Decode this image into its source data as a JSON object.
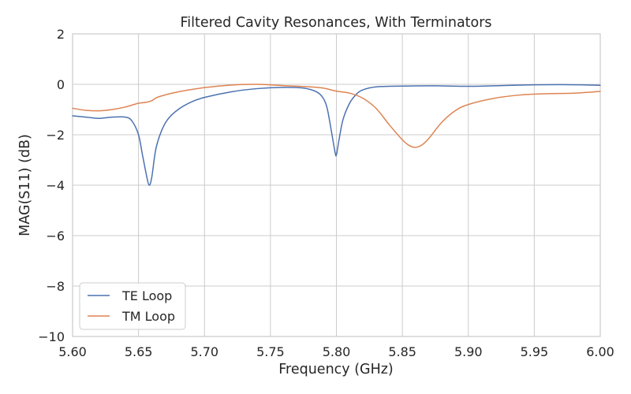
{
  "chart_data": {
    "type": "line",
    "title": "Filtered Cavity Resonances, With Terminators",
    "xlabel": "Frequency (GHz)",
    "ylabel": "MAG(S11) (dB)",
    "xlim": [
      5.6,
      6.0
    ],
    "ylim": [
      -10,
      2
    ],
    "xticks": [
      5.6,
      5.65,
      5.7,
      5.75,
      5.8,
      5.85,
      5.9,
      5.95,
      6.0
    ],
    "xtick_labels": [
      "5.60",
      "5.65",
      "5.70",
      "5.75",
      "5.80",
      "5.85",
      "5.90",
      "5.95",
      "6.00"
    ],
    "yticks": [
      2,
      0,
      -2,
      -4,
      -6,
      -8,
      -10
    ],
    "ytick_labels": [
      "2",
      "0",
      "−2",
      "−4",
      "−6",
      "−8",
      "−10"
    ],
    "grid": true,
    "legend_position": "lower-left",
    "series": [
      {
        "name": "TE Loop",
        "color": "#4c72b0",
        "x": [
          5.6,
          5.61,
          5.62,
          5.63,
          5.64,
          5.645,
          5.65,
          5.653,
          5.656,
          5.658,
          5.66,
          5.663,
          5.667,
          5.672,
          5.68,
          5.69,
          5.7,
          5.72,
          5.74,
          5.76,
          5.775,
          5.785,
          5.79,
          5.793,
          5.796,
          5.799,
          5.8,
          5.802,
          5.805,
          5.81,
          5.815,
          5.82,
          5.83,
          5.85,
          5.875,
          5.9,
          5.925,
          5.95,
          5.97,
          5.985,
          6.0
        ],
        "y": [
          -1.25,
          -1.3,
          -1.35,
          -1.3,
          -1.3,
          -1.45,
          -2.0,
          -2.8,
          -3.6,
          -4.0,
          -3.7,
          -2.6,
          -1.9,
          -1.4,
          -1.0,
          -0.7,
          -0.52,
          -0.3,
          -0.17,
          -0.12,
          -0.15,
          -0.3,
          -0.55,
          -0.95,
          -1.8,
          -2.7,
          -2.8,
          -2.2,
          -1.4,
          -0.75,
          -0.4,
          -0.22,
          -0.1,
          -0.07,
          -0.06,
          -0.08,
          -0.05,
          -0.02,
          -0.01,
          -0.02,
          -0.04
        ]
      },
      {
        "name": "TM Loop",
        "color": "#dd8452",
        "x": [
          5.6,
          5.61,
          5.62,
          5.63,
          5.64,
          5.65,
          5.655,
          5.66,
          5.665,
          5.68,
          5.7,
          5.72,
          5.74,
          5.76,
          5.78,
          5.79,
          5.8,
          5.81,
          5.82,
          5.83,
          5.84,
          5.85,
          5.855,
          5.86,
          5.865,
          5.87,
          5.88,
          5.89,
          5.9,
          5.92,
          5.94,
          5.96,
          5.98,
          6.0
        ],
        "y": [
          -0.95,
          -1.03,
          -1.05,
          -1.0,
          -0.9,
          -0.75,
          -0.72,
          -0.65,
          -0.5,
          -0.3,
          -0.13,
          -0.03,
          0.0,
          -0.05,
          -0.1,
          -0.15,
          -0.27,
          -0.35,
          -0.55,
          -0.95,
          -1.6,
          -2.2,
          -2.42,
          -2.5,
          -2.4,
          -2.15,
          -1.5,
          -1.05,
          -0.8,
          -0.55,
          -0.42,
          -0.37,
          -0.35,
          -0.28
        ]
      }
    ]
  }
}
